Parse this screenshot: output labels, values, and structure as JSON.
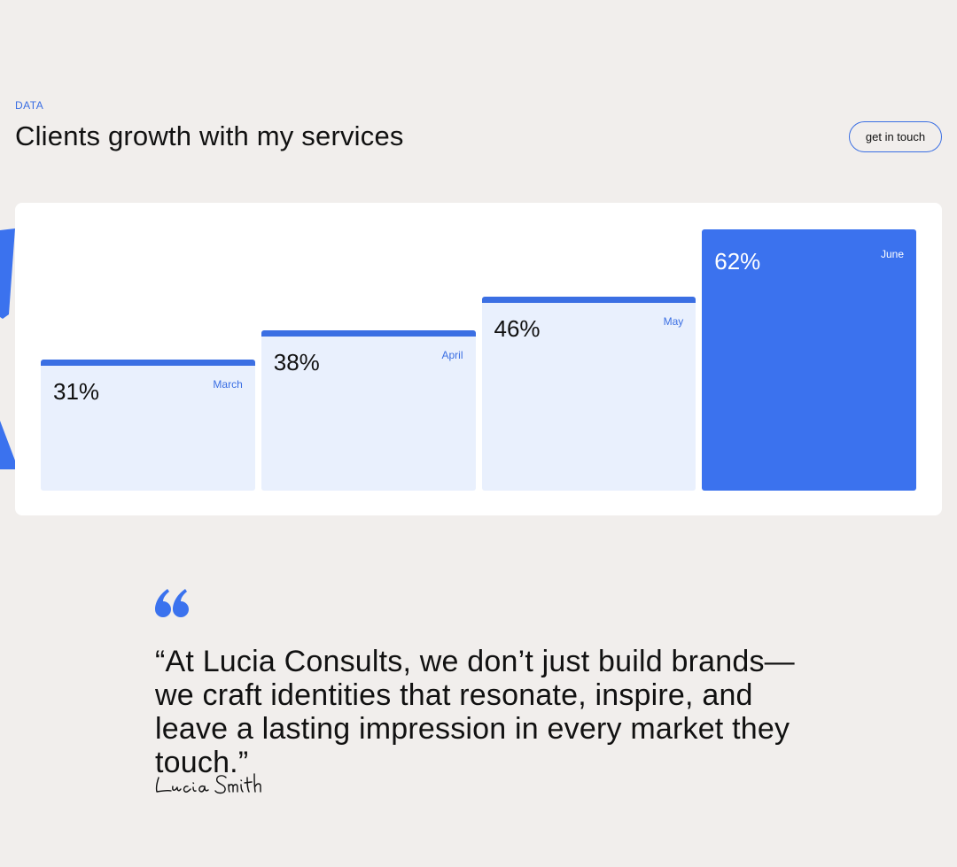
{
  "header": {
    "eyebrow": "DATA",
    "title": "Clients growth with my services",
    "cta_label": "get in touch"
  },
  "colors": {
    "accent": "#3b72ee",
    "bar_fill_light": "#e9f0fd",
    "background": "#f1eeec",
    "card": "#ffffff"
  },
  "chart_data": {
    "type": "bar",
    "categories": [
      "March",
      "April",
      "May",
      "June"
    ],
    "values": [
      31,
      38,
      46,
      62
    ],
    "value_labels": [
      "31%",
      "38%",
      "46%",
      "62%"
    ],
    "highlight_index": 3,
    "ylim": [
      0,
      62
    ],
    "grid": false
  },
  "testimonial": {
    "quote_icon": "quote-icon",
    "text": "“At Lucia Consults, we don’t just build brands—we craft identities that resonate, inspire, and leave a lasting impression in every market they touch.”",
    "signature": "Lucia Smith"
  }
}
